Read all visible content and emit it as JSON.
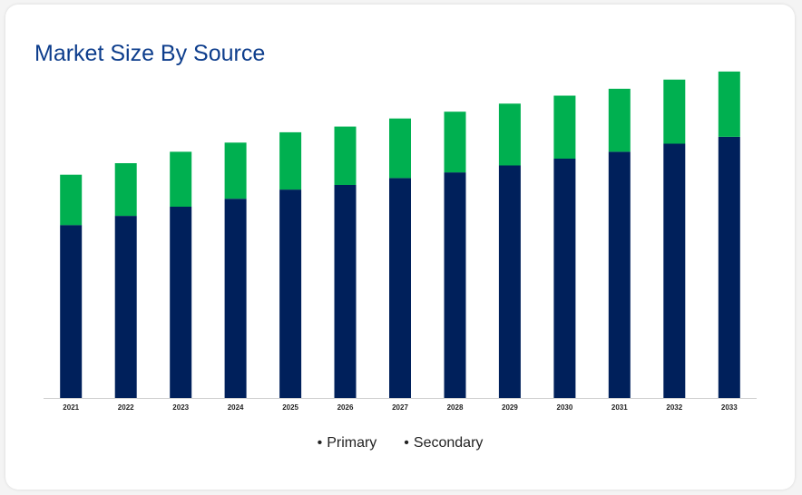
{
  "chart_data": {
    "type": "bar",
    "stacked": true,
    "title": "Market Size By Source",
    "categories": [
      "2021",
      "2022",
      "2023",
      "2024",
      "2025",
      "2026",
      "2027",
      "2028",
      "2029",
      "2030",
      "2031",
      "2032",
      "2033"
    ],
    "series": [
      {
        "name": "Primary",
        "color": "#00205b",
        "values": [
          151,
          159,
          167,
          174,
          182,
          186,
          192,
          197,
          203,
          209,
          215,
          222,
          228
        ]
      },
      {
        "name": "Secondary",
        "color": "#00b050",
        "values": [
          44,
          46,
          48,
          49,
          50,
          51,
          52,
          53,
          54,
          55,
          55,
          56,
          57
        ]
      }
    ],
    "xlabel": "",
    "ylabel": "",
    "ylim": [
      0,
      300
    ],
    "grid": false,
    "legend_position": "bottom-center"
  },
  "legend": {
    "primary_label": "Primary",
    "secondary_label": "Secondary",
    "marker": "•"
  }
}
